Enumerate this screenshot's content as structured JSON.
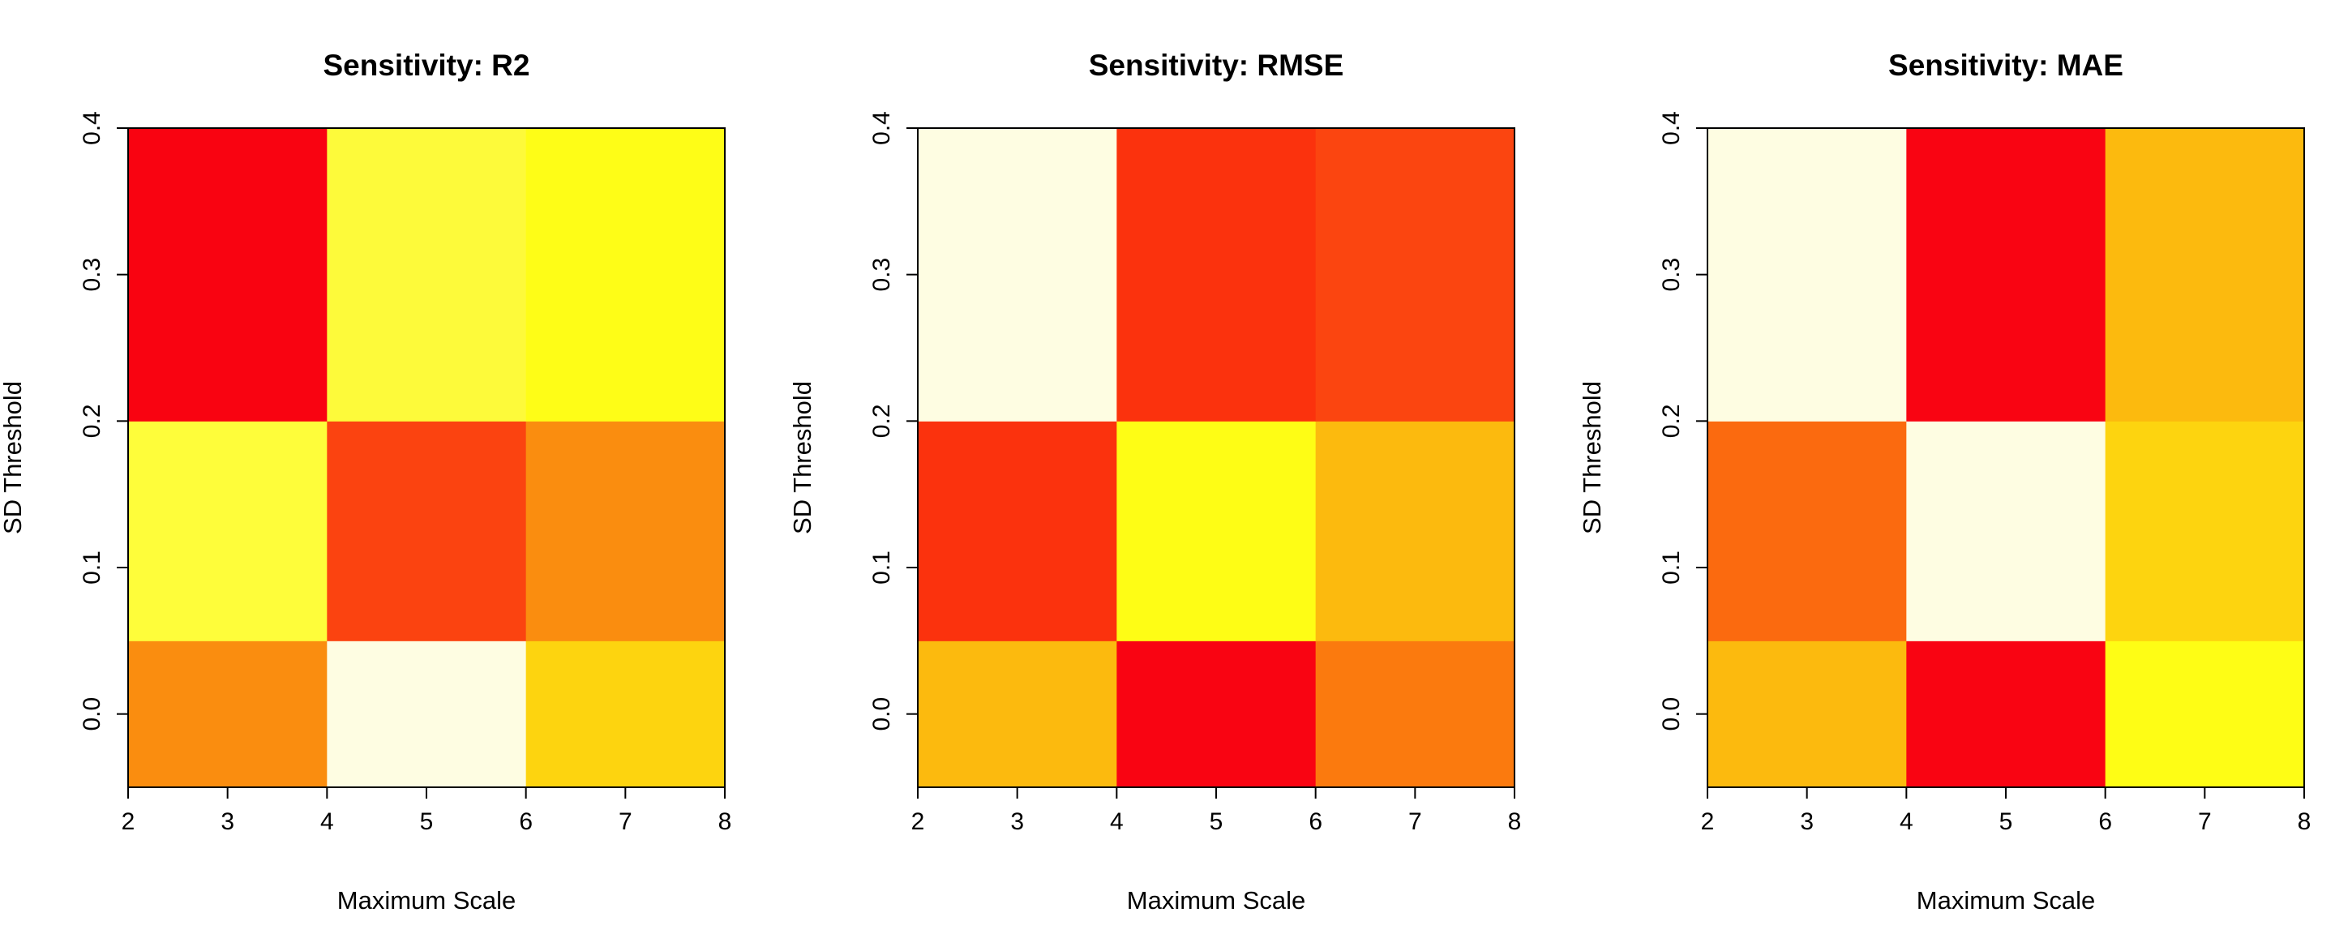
{
  "chart_data": [
    {
      "type": "heatmap",
      "title": "Sensitivity: R2",
      "xlabel": "Maximum Scale",
      "ylabel": "SD Threshold",
      "x_edges": [
        2,
        4,
        6,
        8
      ],
      "y_edges": [
        -0.05,
        0.05,
        0.2,
        0.4
      ],
      "xlim": [
        2,
        8
      ],
      "ylim": [
        -0.05,
        0.4
      ],
      "x_ticks": [
        "2",
        "3",
        "4",
        "5",
        "6",
        "7",
        "8"
      ],
      "y_ticks": [
        "0.0",
        "0.1",
        "0.2",
        "0.3",
        "0.4"
      ],
      "grid": false,
      "cell_colors": [
        [
          "#FA8D0F",
          "#FEFDE2",
          "#FDD40F"
        ],
        [
          "#FEFD3A",
          "#FB4310",
          "#FA8D0F"
        ],
        [
          "#F90311",
          "#FDFA3A",
          "#FEFD17"
        ]
      ]
    },
    {
      "type": "heatmap",
      "title": "Sensitivity: RMSE",
      "xlabel": "Maximum Scale",
      "ylabel": "SD Threshold",
      "x_edges": [
        2,
        4,
        6,
        8
      ],
      "y_edges": [
        -0.05,
        0.05,
        0.2,
        0.4
      ],
      "xlim": [
        2,
        8
      ],
      "ylim": [
        -0.05,
        0.4
      ],
      "x_ticks": [
        "2",
        "3",
        "4",
        "5",
        "6",
        "7",
        "8"
      ],
      "y_ticks": [
        "0.0",
        "0.1",
        "0.2",
        "0.3",
        "0.4"
      ],
      "grid": false,
      "cell_colors": [
        [
          "#FCBA0E",
          "#F90412",
          "#FB7A0E"
        ],
        [
          "#FB320D",
          "#FEFD15",
          "#FCBA0E"
        ],
        [
          "#FEFDE2",
          "#FB320D",
          "#FB4510"
        ]
      ]
    },
    {
      "type": "heatmap",
      "title": "Sensitivity: MAE",
      "xlabel": "Maximum Scale",
      "ylabel": "SD Threshold",
      "x_edges": [
        2,
        4,
        6,
        8
      ],
      "y_edges": [
        -0.05,
        0.05,
        0.2,
        0.4
      ],
      "xlim": [
        2,
        8
      ],
      "ylim": [
        -0.05,
        0.4
      ],
      "x_ticks": [
        "2",
        "3",
        "4",
        "5",
        "6",
        "7",
        "8"
      ],
      "y_ticks": [
        "0.0",
        "0.1",
        "0.2",
        "0.3",
        "0.4"
      ],
      "grid": false,
      "cell_colors": [
        [
          "#FCBA0E",
          "#F90412",
          "#FEFD15"
        ],
        [
          "#FB6A0F",
          "#FEFDE2",
          "#FDD40F"
        ],
        [
          "#FEFDE2",
          "#F90412",
          "#FCBA0E"
        ]
      ]
    }
  ]
}
